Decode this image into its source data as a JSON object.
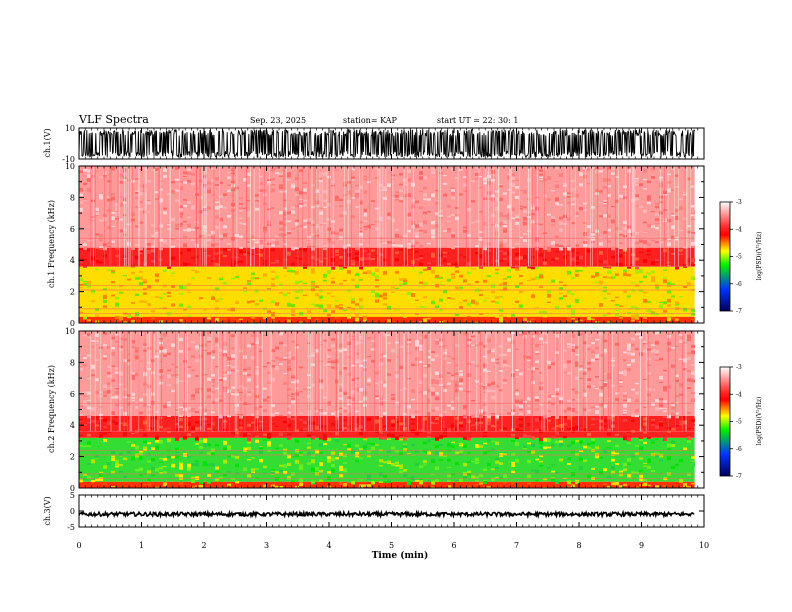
{
  "header": {
    "title": "VLF Spectra",
    "date": "Sep. 23, 2025",
    "station": "station= KAP",
    "start": "start  UT  =   22: 30: 1"
  },
  "chart_data": [
    {
      "type": "line",
      "name": "ch1-waveform",
      "ylabel": "ch.1(V)",
      "ylim": [
        -10,
        10
      ],
      "yticks": [
        "10",
        "-10"
      ],
      "xlim": [
        0,
        10
      ],
      "data_extent_min": 9.85,
      "description_of_series": "dense noise waveform oscillating between about -9 and +9 V"
    },
    {
      "type": "heatmap",
      "name": "ch1-spectrogram",
      "ylabel": "ch.1  Frequency  (kHz)",
      "ylim": [
        0,
        10
      ],
      "yticks": [
        "0",
        "2",
        "4",
        "6",
        "8",
        "10"
      ],
      "xlim": [
        0,
        10
      ],
      "band_structure_khz": [
        {
          "from": 0,
          "to": 0.4,
          "level": "yellow-red"
        },
        {
          "from": 0.4,
          "to": 3.6,
          "level": "yellow-green"
        },
        {
          "from": 3.6,
          "to": 4.8,
          "level": "red"
        },
        {
          "from": 4.8,
          "to": 10,
          "level": "light red"
        }
      ]
    },
    {
      "type": "heatmap",
      "name": "ch2-spectrogram",
      "ylabel": "ch.2  Frequency  (kHz)",
      "ylim": [
        0,
        10
      ],
      "yticks": [
        "0",
        "2",
        "4",
        "6",
        "8",
        "10"
      ],
      "xlim": [
        0,
        10
      ],
      "band_structure_khz": [
        {
          "from": 0,
          "to": 0.4,
          "level": "yellow-red"
        },
        {
          "from": 0.4,
          "to": 3.2,
          "level": "green"
        },
        {
          "from": 3.2,
          "to": 4.6,
          "level": "red"
        },
        {
          "from": 4.6,
          "to": 10,
          "level": "light red"
        }
      ]
    },
    {
      "type": "line",
      "name": "ch3-waveform",
      "ylabel": "ch.3(V)",
      "ylim": [
        -5,
        5
      ],
      "yticks": [
        "5",
        "0",
        "-5"
      ],
      "xlim": [
        0,
        10
      ],
      "xlabel": "Time  (min)",
      "xticks": [
        "0",
        "1",
        "2",
        "3",
        "4",
        "5",
        "6",
        "7",
        "8",
        "9",
        "10"
      ],
      "description_of_series": "narrow band of noise around -1 V"
    }
  ],
  "colorbar": {
    "label": "log(PSD)(V²/Hz)",
    "range": [
      -7,
      -3
    ],
    "ticks": [
      "-3",
      "-4",
      "-5",
      "-6",
      "-7"
    ],
    "colors": [
      "#ffffff",
      "#ff0000",
      "#ffff00",
      "#00ff00",
      "#0000ff",
      "#000044"
    ]
  }
}
